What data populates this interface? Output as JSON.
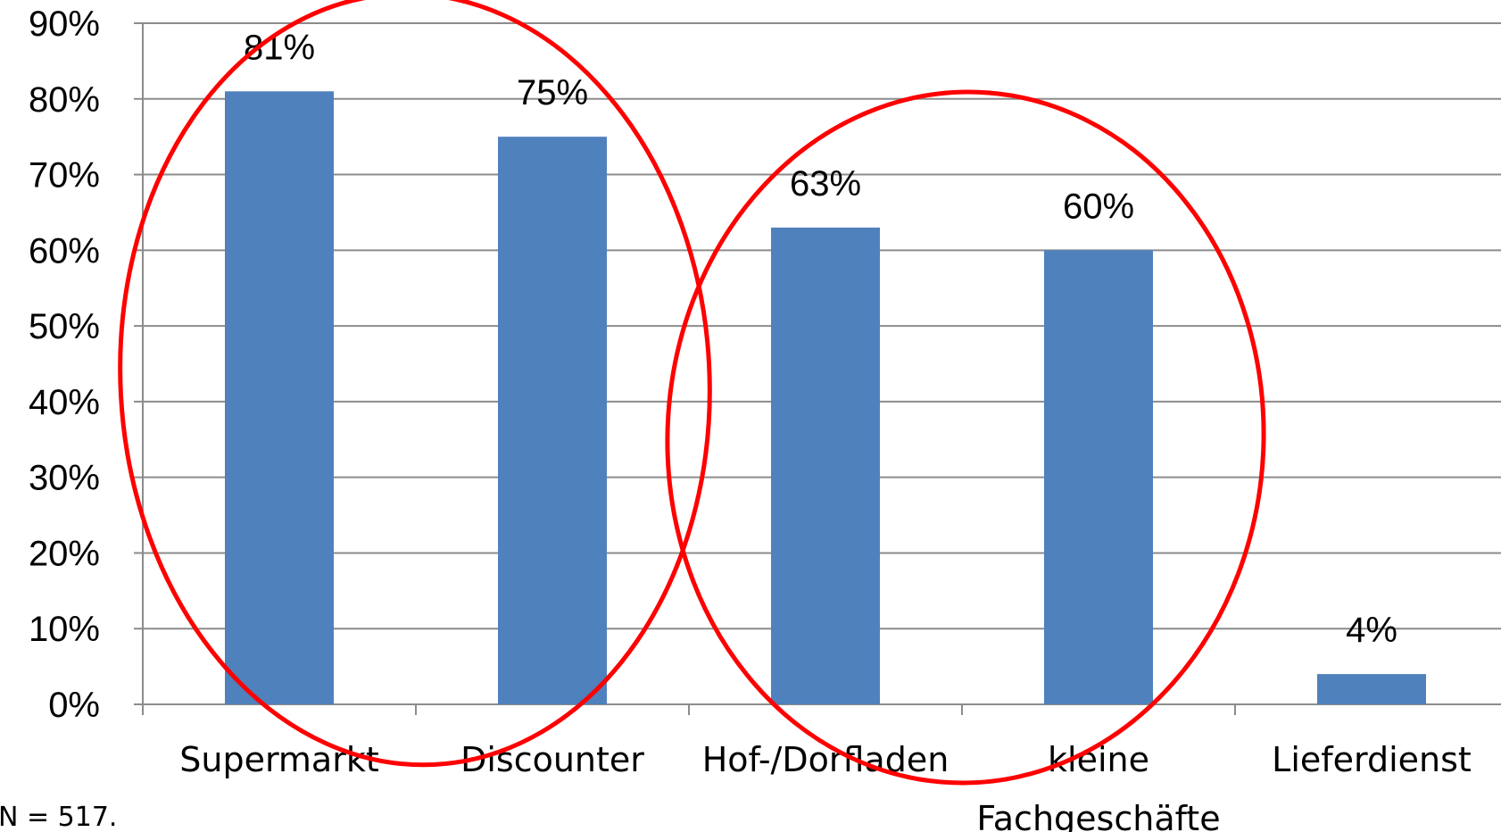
{
  "chart_data": {
    "type": "bar",
    "categories": [
      "Supermarkt",
      "Discounter",
      "Hof-/Dorfladen",
      "kleine Fachgeschäfte",
      "Lieferdienst"
    ],
    "category_lines": [
      [
        "Supermarkt"
      ],
      [
        "Discounter"
      ],
      [
        "Hof-/Dorfladen"
      ],
      [
        "kleine",
        "Fachgeschäfte"
      ],
      [
        "Lieferdienst"
      ]
    ],
    "values": [
      81,
      75,
      63,
      60,
      4
    ],
    "data_labels": [
      "81%",
      "75%",
      "63%",
      "60%",
      "4%"
    ],
    "y_ticks": [
      0,
      10,
      20,
      30,
      40,
      50,
      60,
      70,
      80,
      90
    ],
    "y_tick_labels": [
      "0%",
      "10%",
      "20%",
      "30%",
      "40%",
      "50%",
      "60%",
      "70%",
      "80%",
      "90%"
    ],
    "ylim": [
      0,
      90
    ],
    "grid": true,
    "bar_color": "#4f81bd",
    "highlights": [
      {
        "categories": [
          "Supermarkt",
          "Discounter"
        ],
        "color": "#ff0000"
      },
      {
        "categories": [
          "Hof-/Dorfladen",
          "kleine Fachgeschäfte"
        ],
        "color": "#ff0000"
      }
    ],
    "title": "",
    "xlabel": "",
    "ylabel": ""
  },
  "footnote": "N = 517."
}
